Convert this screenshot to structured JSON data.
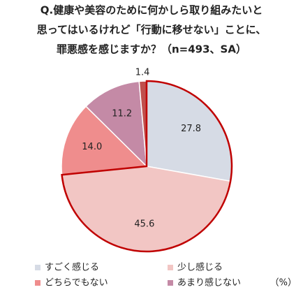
{
  "chart_data": {
    "type": "pie",
    "title": [
      "Q.健康や美容のために何かしら取り組みたいと",
      "思ってはいるけれど「行動に移せない」ことに、",
      "罪悪感を感じますか？（n=493、SA）"
    ],
    "categories": [
      "すごく感じる",
      "少し感じる",
      "どちらでもない",
      "あまり感じない",
      null
    ],
    "values": [
      27.8,
      45.6,
      14.0,
      11.2,
      1.4
    ],
    "value_labels": [
      "27.8",
      "45.6",
      "14.0",
      "11.2",
      "1.4"
    ],
    "colors": [
      "#d6dbe5",
      "#f2c6c4",
      "#ef8d8d",
      "#c48aa6",
      "#c0504d"
    ],
    "unit": "（%）"
  }
}
